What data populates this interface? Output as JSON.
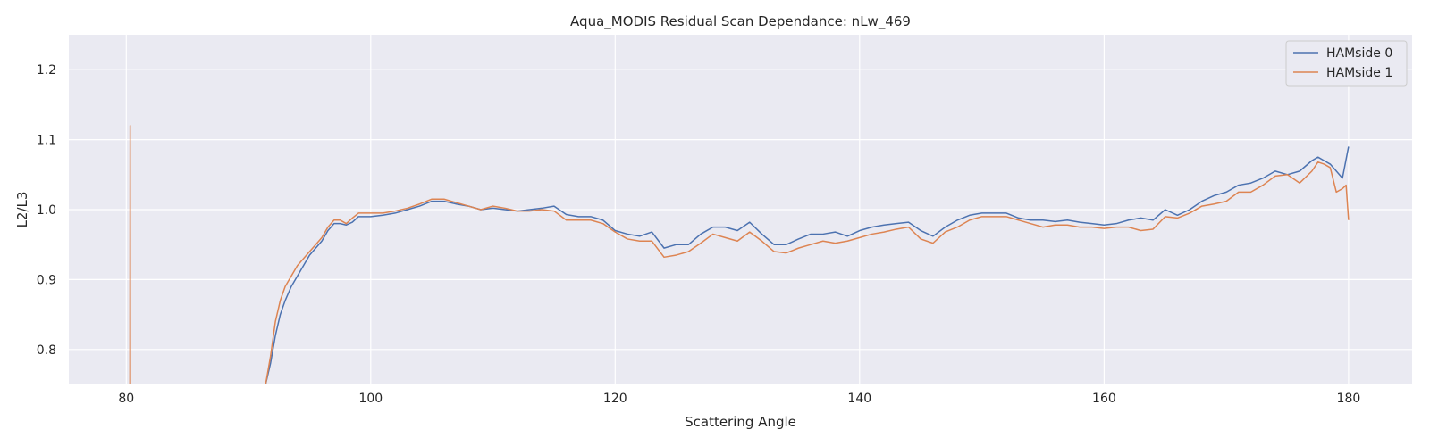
{
  "chart_data": {
    "type": "line",
    "title": "Aqua_MODIS Residual Scan Dependance: nLw_469",
    "xlabel": "Scattering Angle",
    "ylabel": "L2/L3",
    "xlim": [
      75.3,
      185.2
    ],
    "ylim": [
      0.75,
      1.25
    ],
    "xticks": [
      80,
      100,
      120,
      140,
      160,
      180
    ],
    "yticks": [
      0.8,
      0.9,
      1.0,
      1.1,
      1.2
    ],
    "xtick_labels": [
      "80",
      "100",
      "120",
      "140",
      "160",
      "180"
    ],
    "ytick_labels": [
      "0.8",
      "0.9",
      "1.0",
      "1.1",
      "1.2"
    ],
    "grid": true,
    "legend_position": "top-right",
    "series": [
      {
        "name": "HAMside 0",
        "color": "#4c72b0",
        "x": [
          91.4,
          91.8,
          92.2,
          92.6,
          93.0,
          93.5,
          94.0,
          94.5,
          95.0,
          95.5,
          96.0,
          96.5,
          97.0,
          97.5,
          98.0,
          98.5,
          99.0,
          100.0,
          101.0,
          102.0,
          103.0,
          104.0,
          105.0,
          106.0,
          107.0,
          108.0,
          109.0,
          110.0,
          111.0,
          112.0,
          113.0,
          114.0,
          115.0,
          116.0,
          117.0,
          118.0,
          119.0,
          120.0,
          121.0,
          122.0,
          123.0,
          124.0,
          125.0,
          126.0,
          127.0,
          128.0,
          129.0,
          130.0,
          131.0,
          132.0,
          133.0,
          134.0,
          135.0,
          136.0,
          137.0,
          138.0,
          139.0,
          140.0,
          141.0,
          142.0,
          143.0,
          144.0,
          145.0,
          146.0,
          147.0,
          148.0,
          149.0,
          150.0,
          151.0,
          152.0,
          153.0,
          154.0,
          155.0,
          156.0,
          157.0,
          158.0,
          159.0,
          160.0,
          161.0,
          162.0,
          163.0,
          164.0,
          165.0,
          166.0,
          167.0,
          168.0,
          169.0,
          170.0,
          171.0,
          172.0,
          173.0,
          174.0,
          175.0,
          176.0,
          177.0,
          177.5,
          178.0,
          178.5,
          179.0,
          179.5,
          180.0
        ],
        "y": [
          0.75,
          0.78,
          0.82,
          0.85,
          0.87,
          0.89,
          0.905,
          0.92,
          0.935,
          0.945,
          0.955,
          0.97,
          0.98,
          0.98,
          0.978,
          0.982,
          0.99,
          0.99,
          0.992,
          0.995,
          1.0,
          1.005,
          1.012,
          1.012,
          1.008,
          1.005,
          1.0,
          1.002,
          1.0,
          0.998,
          1.0,
          1.002,
          1.005,
          0.993,
          0.99,
          0.99,
          0.985,
          0.97,
          0.965,
          0.962,
          0.968,
          0.945,
          0.95,
          0.95,
          0.965,
          0.975,
          0.975,
          0.97,
          0.982,
          0.965,
          0.95,
          0.95,
          0.958,
          0.965,
          0.965,
          0.968,
          0.962,
          0.97,
          0.975,
          0.978,
          0.98,
          0.982,
          0.97,
          0.962,
          0.975,
          0.985,
          0.992,
          0.995,
          0.995,
          0.995,
          0.988,
          0.985,
          0.985,
          0.983,
          0.985,
          0.982,
          0.98,
          0.978,
          0.98,
          0.985,
          0.988,
          0.985,
          1.0,
          0.992,
          1.0,
          1.012,
          1.02,
          1.025,
          1.035,
          1.038,
          1.045,
          1.055,
          1.05,
          1.055,
          1.07,
          1.075,
          1.07,
          1.065,
          1.055,
          1.045,
          1.09
        ]
      },
      {
        "name": "HAMside 1",
        "color": "#dd8452",
        "x": [
          80.3,
          80.32,
          80.34,
          91.4,
          91.8,
          92.2,
          92.6,
          93.0,
          93.5,
          94.0,
          94.5,
          95.0,
          95.5,
          96.0,
          96.5,
          97.0,
          97.5,
          98.0,
          98.5,
          99.0,
          100.0,
          101.0,
          102.0,
          103.0,
          104.0,
          105.0,
          106.0,
          107.0,
          108.0,
          109.0,
          110.0,
          111.0,
          112.0,
          113.0,
          114.0,
          115.0,
          116.0,
          117.0,
          118.0,
          119.0,
          120.0,
          121.0,
          122.0,
          123.0,
          124.0,
          125.0,
          126.0,
          127.0,
          128.0,
          129.0,
          130.0,
          131.0,
          132.0,
          133.0,
          134.0,
          135.0,
          136.0,
          137.0,
          138.0,
          139.0,
          140.0,
          141.0,
          142.0,
          143.0,
          144.0,
          145.0,
          146.0,
          147.0,
          148.0,
          149.0,
          150.0,
          151.0,
          152.0,
          153.0,
          154.0,
          155.0,
          156.0,
          157.0,
          158.0,
          159.0,
          160.0,
          161.0,
          162.0,
          163.0,
          164.0,
          165.0,
          166.0,
          167.0,
          168.0,
          169.0,
          170.0,
          171.0,
          172.0,
          173.0,
          174.0,
          175.0,
          176.0,
          177.0,
          177.5,
          178.0,
          178.5,
          179.0,
          179.5,
          179.8,
          180.0
        ],
        "y": [
          0.75,
          1.12,
          0.75,
          0.75,
          0.79,
          0.84,
          0.87,
          0.89,
          0.905,
          0.92,
          0.93,
          0.94,
          0.95,
          0.96,
          0.975,
          0.985,
          0.985,
          0.98,
          0.988,
          0.995,
          0.995,
          0.995,
          0.998,
          1.002,
          1.008,
          1.015,
          1.015,
          1.01,
          1.005,
          1.0,
          1.005,
          1.002,
          0.998,
          0.998,
          1.0,
          0.998,
          0.985,
          0.985,
          0.985,
          0.98,
          0.968,
          0.958,
          0.955,
          0.955,
          0.932,
          0.935,
          0.94,
          0.952,
          0.965,
          0.96,
          0.955,
          0.968,
          0.955,
          0.94,
          0.938,
          0.945,
          0.95,
          0.955,
          0.952,
          0.955,
          0.96,
          0.965,
          0.968,
          0.972,
          0.975,
          0.958,
          0.952,
          0.968,
          0.975,
          0.985,
          0.99,
          0.99,
          0.99,
          0.985,
          0.98,
          0.975,
          0.978,
          0.978,
          0.975,
          0.975,
          0.973,
          0.975,
          0.975,
          0.97,
          0.972,
          0.99,
          0.988,
          0.995,
          1.005,
          1.008,
          1.012,
          1.025,
          1.025,
          1.035,
          1.048,
          1.05,
          1.038,
          1.055,
          1.068,
          1.065,
          1.06,
          1.025,
          1.03,
          1.035,
          0.985
        ]
      }
    ]
  }
}
